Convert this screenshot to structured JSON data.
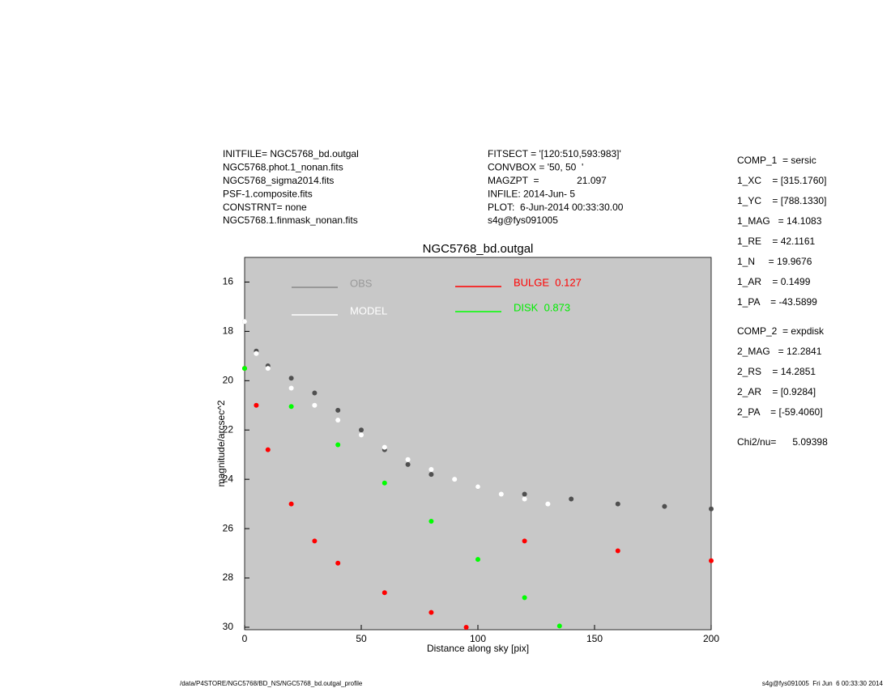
{
  "chart_data": {
    "type": "scatter",
    "title": "NGC5768_bd.outgal",
    "xlabel": "Distance along sky [pix]",
    "ylabel": "magnitude/arcsec^2",
    "xlim": [
      0,
      200
    ],
    "ylim": [
      30.1,
      15
    ],
    "xticks": [
      0,
      50,
      100,
      150,
      200
    ],
    "yticks": [
      16,
      18,
      20,
      22,
      24,
      26,
      28,
      30
    ],
    "plot_background": "#c8c8c8",
    "header_left": [
      "INITFILE= NGC5768_bd.outgal",
      "NGC5768.phot.1_nonan.fits",
      "NGC5768_sigma2014.fits",
      "PSF-1.composite.fits",
      "CONSTRNT= none",
      "NGC5768.1.finmask_nonan.fits"
    ],
    "header_mid": [
      "FITSECT = '[120:510,593:983]'",
      "CONVBOX = '50, 50  '",
      "MAGZPT  =              21.097",
      "INFILE: 2014-Jun- 5",
      "PLOT:  6-Jun-2014 00:33:30.00",
      "s4g@fys091005"
    ],
    "params": [
      "COMP_1  = sersic",
      "1_XC    = [315.1760]",
      "1_YC    = [788.1330]",
      "1_MAG   = 14.1083",
      "1_RE    = 42.1161",
      "1_N     = 19.9676",
      "1_AR    = 0.1499",
      "1_PA    = -43.5899",
      "COMP_2  = expdisk",
      "2_MAG   = 12.2841",
      "2_RS    = 14.2851",
      "2_AR    = [0.9284]",
      "2_PA    = [-59.4060]",
      "Chi2/nu=      5.09398"
    ],
    "footer_left": "/data/P4STORE/NGC5768/BD_NS/NGC5768_bd.outgal_profile",
    "footer_right": "s4g@fys091005  Fri Jun  6 00:33:30 2014",
    "series": [
      {
        "name": "OBS",
        "color": "#505050",
        "x": [
          0,
          5,
          10,
          20,
          30,
          40,
          50,
          60,
          70,
          80,
          100,
          120,
          140,
          160,
          180,
          200
        ],
        "values": [
          17.6,
          18.8,
          19.4,
          19.9,
          20.5,
          21.2,
          22.0,
          22.8,
          23.4,
          23.8,
          24.3,
          24.6,
          24.8,
          25.0,
          25.1,
          25.2
        ]
      },
      {
        "name": "MODEL",
        "color": "#ffffff",
        "x": [
          0,
          5,
          10,
          20,
          30,
          40,
          50,
          60,
          70,
          80,
          90,
          100,
          110,
          120,
          130
        ],
        "values": [
          17.6,
          18.9,
          19.5,
          20.3,
          21.0,
          21.6,
          22.2,
          22.7,
          23.2,
          23.6,
          24.0,
          24.3,
          24.6,
          24.8,
          25.0
        ]
      },
      {
        "name": "BULGE  0.127",
        "color": "#ff0000",
        "x": [
          0,
          5,
          10,
          20,
          30,
          40,
          60,
          80,
          95,
          120,
          160,
          200
        ],
        "values": [
          19.5,
          21.0,
          22.8,
          25.0,
          26.5,
          27.4,
          28.6,
          29.4,
          30.0,
          26.5,
          26.9,
          27.3
        ]
      },
      {
        "name": "DISK  0.873",
        "color": "#00ff00",
        "x": [
          0,
          20,
          40,
          60,
          80,
          100,
          120,
          135
        ],
        "values": [
          19.5,
          21.05,
          22.6,
          24.15,
          25.7,
          27.25,
          28.8,
          29.95
        ]
      }
    ]
  }
}
